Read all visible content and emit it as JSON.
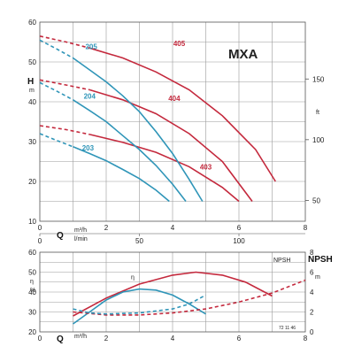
{
  "colors": {
    "red": "#c4293d",
    "blue": "#2f95b8"
  },
  "chart_data": [
    {
      "type": "line",
      "title": "MXA",
      "ylabel": "H",
      "yunit": "m",
      "y2label": "ft",
      "xlabel": "Q",
      "xunit_top": "m³/h",
      "xunit_bottom": "l/min",
      "xlim": [
        0,
        8
      ],
      "ylim": [
        10,
        60
      ],
      "xticks": [
        "0",
        "2",
        "4",
        "6",
        "8"
      ],
      "yticks": [
        "10",
        "20",
        "30",
        "40",
        "50",
        "60"
      ],
      "y2ticks": [
        "50",
        "100",
        "150"
      ],
      "x2ticks": [
        "0",
        "50",
        "100"
      ],
      "series": [
        {
          "name": "405",
          "color": "#c4293d",
          "dashed_x": [
            0,
            0.8,
            1.5
          ],
          "dashed_y": [
            56.5,
            55,
            53.5
          ],
          "x": [
            1.5,
            2.5,
            3.5,
            4.5,
            5.5,
            6.5,
            7.1
          ],
          "y": [
            53.5,
            51,
            47.5,
            43,
            36.5,
            28,
            20
          ]
        },
        {
          "name": "404",
          "color": "#c4293d",
          "dashed_x": [
            0,
            0.8,
            1.5
          ],
          "dashed_y": [
            45.5,
            44.2,
            43
          ],
          "x": [
            1.5,
            2.5,
            3.5,
            4.5,
            5.5,
            6.4
          ],
          "y": [
            43,
            40.5,
            37,
            32,
            25,
            15
          ]
        },
        {
          "name": "403",
          "color": "#c4293d",
          "dashed_x": [
            0,
            0.8,
            1.5
          ],
          "dashed_y": [
            34,
            33,
            31.8
          ],
          "x": [
            1.5,
            2.5,
            3.5,
            4.5,
            5.5,
            6
          ],
          "y": [
            31.8,
            29.8,
            27.3,
            23.7,
            18.5,
            15
          ]
        },
        {
          "name": "205",
          "color": "#2f95b8",
          "dashed_x": [
            0,
            0.5,
            1
          ],
          "dashed_y": [
            55.5,
            53.3,
            51
          ],
          "x": [
            1,
            1.5,
            2,
            2.5,
            3,
            3.5,
            4,
            4.5,
            4.9
          ],
          "y": [
            51,
            48,
            45,
            41.5,
            37.5,
            32.5,
            27,
            20.5,
            15
          ]
        },
        {
          "name": "204",
          "color": "#2f95b8",
          "dashed_x": [
            0,
            0.5,
            1
          ],
          "dashed_y": [
            44.8,
            42.7,
            40.5
          ],
          "x": [
            1,
            1.5,
            2,
            2.5,
            3,
            3.5,
            4,
            4.4
          ],
          "y": [
            40.5,
            37.8,
            35,
            31.5,
            28,
            24,
            19.3,
            15
          ]
        },
        {
          "name": "203",
          "color": "#2f95b8",
          "dashed_x": [
            0,
            0.5,
            1
          ],
          "dashed_y": [
            32,
            30.3,
            28.7
          ],
          "x": [
            1,
            1.5,
            2,
            2.5,
            3,
            3.5,
            3.9
          ],
          "y": [
            28.7,
            27,
            25.2,
            23,
            20.7,
            17.8,
            15
          ]
        }
      ]
    },
    {
      "type": "line",
      "xlabel": "Q",
      "xunit": "m³/h",
      "ylabel": "η",
      "yunit": "%",
      "y2label": "NPSH",
      "y2unit": "m",
      "legend_npsh": "NPSH",
      "code": "72 11 46",
      "xlim": [
        0,
        8
      ],
      "ylim": [
        20,
        60
      ],
      "y2lim": [
        0,
        8
      ],
      "xticks": [
        "0",
        "2",
        "4",
        "6",
        "8"
      ],
      "yticks": [
        "20",
        "30",
        "40",
        "50",
        "60"
      ],
      "y2ticks": [
        "0",
        "2",
        "4",
        "6",
        "8"
      ],
      "series": [
        {
          "name": "η",
          "color": "#c4293d",
          "x": [
            1,
            2,
            3,
            4,
            4.7,
            5.5,
            6.2,
            7
          ],
          "y": [
            28,
            37,
            44,
            48.5,
            50,
            48.5,
            45,
            38
          ]
        },
        {
          "name": "",
          "color": "#2f95b8",
          "x": [
            1,
            1.5,
            2,
            2.5,
            3,
            3.5,
            4,
            4.5,
            5
          ],
          "y": [
            24,
            30,
            36,
            40,
            41.5,
            41,
            38.5,
            34,
            29
          ]
        },
        {
          "name": "NPSH",
          "axis": "right",
          "color": "#c4293d",
          "dashed": true,
          "x": [
            1,
            2,
            3,
            4,
            5,
            6,
            7,
            8
          ],
          "y": [
            2.0,
            1.7,
            1.7,
            1.9,
            2.3,
            3.0,
            3.9,
            5.2
          ]
        },
        {
          "name": "",
          "axis": "right",
          "color": "#2f95b8",
          "dashed": true,
          "x": [
            1,
            1.5,
            2,
            3,
            4,
            4.5,
            5
          ],
          "y": [
            2.3,
            1.9,
            1.8,
            1.9,
            2.3,
            2.8,
            3.7
          ]
        }
      ]
    }
  ]
}
